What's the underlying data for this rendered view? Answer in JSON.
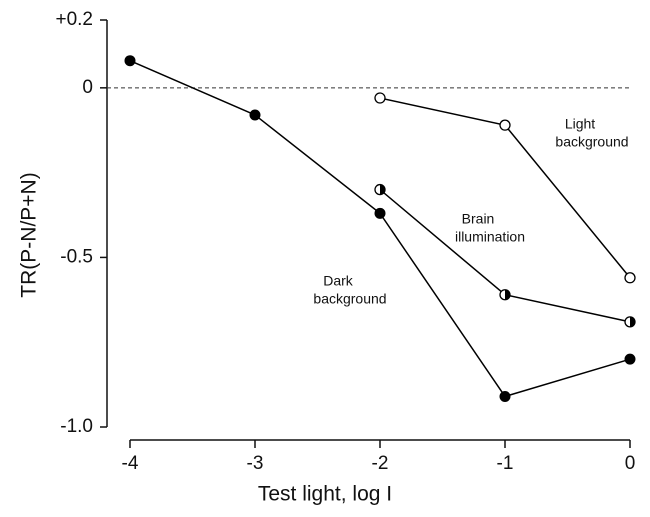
{
  "chart_data": {
    "type": "line",
    "xlabel": "Test light, log I",
    "ylabel": "TR(P-N/P+N)",
    "x": [
      -4,
      -3,
      -2,
      -1,
      0
    ],
    "series": [
      {
        "name": "Dark background",
        "marker": "filled",
        "color": "#000000",
        "values": [
          0.08,
          -0.08,
          -0.37,
          -0.91,
          -0.8
        ]
      },
      {
        "name": "Brain illumination",
        "marker": "half",
        "color": "#000000",
        "values": [
          null,
          null,
          -0.3,
          -0.61,
          -0.69
        ]
      },
      {
        "name": "Light background",
        "marker": "open",
        "color": "#000000",
        "values": [
          null,
          null,
          -0.03,
          -0.11,
          -0.56
        ]
      }
    ],
    "annotations": [
      {
        "lines": [
          "Light",
          "background"
        ]
      },
      {
        "lines": [
          "Brain",
          "illumination"
        ]
      },
      {
        "lines": [
          "Dark",
          "background"
        ]
      }
    ],
    "xlim": [
      -4,
      0
    ],
    "xticks": [
      -4,
      -3,
      -2,
      -1,
      0
    ],
    "ylim": [
      -1.0,
      0.2
    ],
    "yticks": [
      {
        "value": 0.2,
        "label": "+0.2"
      },
      0,
      -0.5,
      {
        "value": -1.0,
        "label": "-1.0"
      }
    ],
    "reference_line": 0
  }
}
